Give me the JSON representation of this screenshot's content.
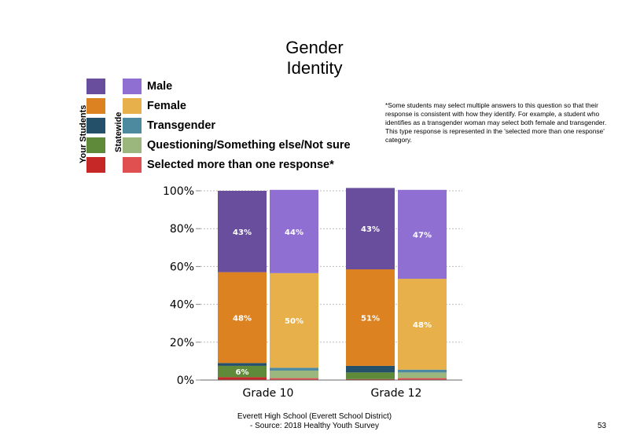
{
  "chart_data": {
    "type": "bar",
    "stacked": true,
    "title": "Gender Identity",
    "categories": [
      "Grade 10",
      "Grade 12"
    ],
    "groups": [
      "Your Students",
      "Statewide"
    ],
    "ylim": [
      0,
      100
    ],
    "yticks": [
      "0%",
      "20%",
      "40%",
      "60%",
      "80%",
      "100%"
    ],
    "grid": true,
    "legend_position": "top-left",
    "series": [
      {
        "name": "Selected more than one response*",
        "colors": {
          "Your Students": "#c62828",
          "Statewide": "#e05050"
        },
        "values": {
          "Grade 10": {
            "Your Students": 1.5,
            "Statewide": 1.0
          },
          "Grade 12": {
            "Your Students": 0.5,
            "Statewide": 1.0
          }
        },
        "labels": {}
      },
      {
        "name": "Questioning/Something else/Not sure",
        "colors": {
          "Your Students": "#5f8a3a",
          "Statewide": "#9cb77d"
        },
        "values": {
          "Grade 10": {
            "Your Students": 6,
            "Statewide": 4
          },
          "Grade 12": {
            "Your Students": 3.5,
            "Statewide": 3
          }
        },
        "labels": {
          "Grade 10": {
            "Your Students": "6%"
          }
        }
      },
      {
        "name": "Transgender",
        "colors": {
          "Your Students": "#25506a",
          "Statewide": "#4d8aa0"
        },
        "values": {
          "Grade 10": {
            "Your Students": 1.5,
            "Statewide": 1.5
          },
          "Grade 12": {
            "Your Students": 3.5,
            "Statewide": 1.5
          }
        },
        "labels": {}
      },
      {
        "name": "Female",
        "colors": {
          "Your Students": "#dd8220",
          "Statewide": "#e8b04a"
        },
        "values": {
          "Grade 10": {
            "Your Students": 48,
            "Statewide": 50
          },
          "Grade 12": {
            "Your Students": 51,
            "Statewide": 48
          }
        },
        "labels": {
          "Grade 10": {
            "Your Students": "48%",
            "Statewide": "50%"
          },
          "Grade 12": {
            "Your Students": "51%",
            "Statewide": "48%"
          }
        }
      },
      {
        "name": "Male",
        "colors": {
          "Your Students": "#684e9c",
          "Statewide": "#8f70d2"
        },
        "values": {
          "Grade 10": {
            "Your Students": 43,
            "Statewide": 44
          },
          "Grade 12": {
            "Your Students": 43,
            "Statewide": 47
          }
        },
        "labels": {
          "Grade 10": {
            "Your Students": "43%",
            "Statewide": "44%"
          },
          "Grade 12": {
            "Your Students": "43%",
            "Statewide": "47%"
          }
        }
      }
    ]
  },
  "legend": {
    "your_students_label": "Your Students",
    "statewide_label": "Statewide",
    "items": [
      {
        "label": "Male",
        "your_color": "#684e9c",
        "state_color": "#8f70d2"
      },
      {
        "label": "Female",
        "your_color": "#dd8220",
        "state_color": "#e8b04a"
      },
      {
        "label": "Transgender",
        "your_color": "#25506a",
        "state_color": "#4d8aa0"
      },
      {
        "label": "Questioning/Something else/Not sure",
        "your_color": "#5f8a3a",
        "state_color": "#9cb77d"
      },
      {
        "label": "Selected more than one response*",
        "your_color": "#c62828",
        "state_color": "#e05050"
      }
    ]
  },
  "title_lines": [
    "Gender",
    "Identity"
  ],
  "note": "*Some students may select multiple answers to this question so that their response is consistent with how they identify. For example, a student who identifies as a transgender woman may select both female and transgender. This type response is represented in the 'selected more than one response' category.",
  "footer": {
    "line1": "Everett High  School (Everett School District)",
    "line2": "- Source: 2018 Healthy  Youth Survey"
  },
  "page_number": "53"
}
